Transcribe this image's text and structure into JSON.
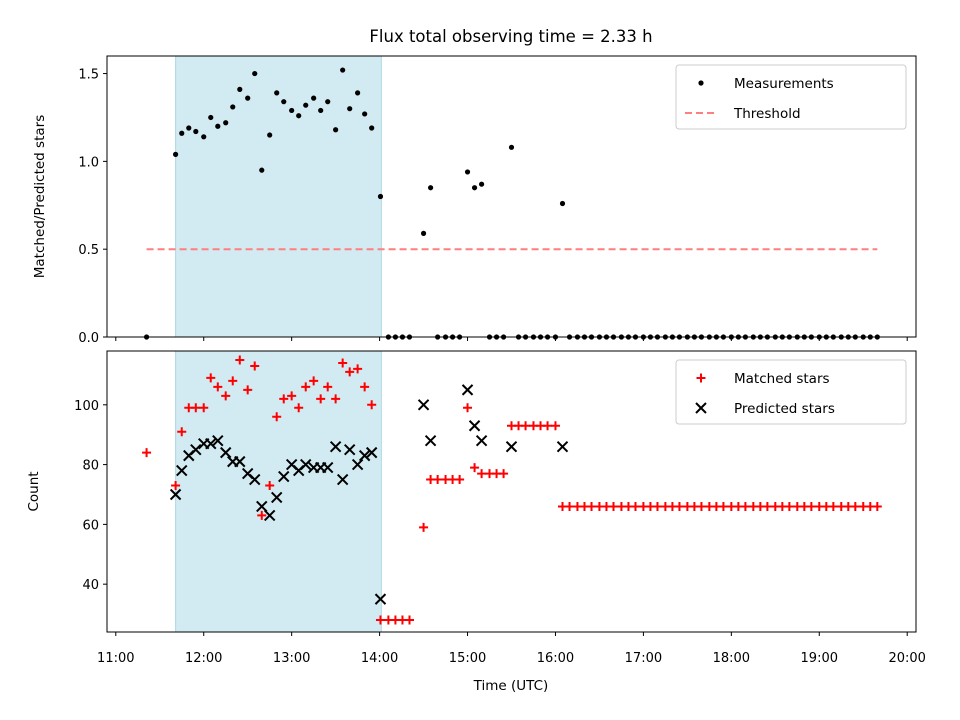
{
  "chart_data": {
    "type": "scatter",
    "title": "Flux total observing time = 2.33 h",
    "xlabel": "Time (UTC)",
    "x_unit": "hours UTC",
    "xlim": [
      10.9,
      20.1
    ],
    "x_ticks": [
      {
        "value": 11,
        "label": "11:00"
      },
      {
        "value": 12,
        "label": "12:00"
      },
      {
        "value": 13,
        "label": "13:00"
      },
      {
        "value": 14,
        "label": "14:00"
      },
      {
        "value": 15,
        "label": "15:00"
      },
      {
        "value": 16,
        "label": "16:00"
      },
      {
        "value": 17,
        "label": "17:00"
      },
      {
        "value": 18,
        "label": "18:00"
      },
      {
        "value": 19,
        "label": "19:00"
      },
      {
        "value": 20,
        "label": "20:00"
      }
    ],
    "highlight_span": {
      "x_start": 11.68,
      "x_end": 14.02,
      "color": "#add8e6"
    },
    "panels": [
      {
        "ylabel": "Matched/Predicted stars",
        "ylim": [
          0,
          1.6
        ],
        "yticks": [
          0.0,
          0.5,
          1.0,
          1.5
        ],
        "ytick_labels": [
          "0.0",
          "0.5",
          "1.0",
          "1.5"
        ],
        "legend": {
          "position": "top-right",
          "entries": [
            "Measurements",
            "Threshold"
          ]
        },
        "series": [
          {
            "name": "Measurements",
            "marker": "dot",
            "color": "#000000",
            "x": [
              11.35,
              11.68,
              11.75,
              11.83,
              11.91,
              12.0,
              12.08,
              12.16,
              12.25,
              12.33,
              12.41,
              12.5,
              12.58,
              12.66,
              12.75,
              12.83,
              12.91,
              13.0,
              13.08,
              13.16,
              13.25,
              13.33,
              13.41,
              13.5,
              13.58,
              13.66,
              13.75,
              13.83,
              13.91,
              14.01,
              14.1,
              14.18,
              14.26,
              14.34,
              14.5,
              14.58,
              14.66,
              14.75,
              14.83,
              14.91,
              15.0,
              15.08,
              15.16,
              15.25,
              15.33,
              15.41,
              15.5,
              15.58,
              15.66,
              15.75,
              15.83,
              15.91,
              16.0,
              16.08,
              16.16,
              16.25,
              16.33,
              16.41,
              16.5,
              16.58,
              16.66,
              16.75,
              16.83,
              16.91,
              17.0,
              17.08,
              17.16,
              17.25,
              17.33,
              17.41,
              17.5,
              17.58,
              17.66,
              17.75,
              17.83,
              17.91,
              18.0,
              18.08,
              18.16,
              18.25,
              18.33,
              18.41,
              18.5,
              18.58,
              18.66,
              18.75,
              18.83,
              18.91,
              19.0,
              19.08,
              19.16,
              19.25,
              19.33,
              19.41,
              19.5,
              19.58,
              19.66
            ],
            "y": [
              0.0,
              1.04,
              1.16,
              1.19,
              1.17,
              1.14,
              1.25,
              1.2,
              1.22,
              1.31,
              1.41,
              1.36,
              1.5,
              0.95,
              1.15,
              1.39,
              1.34,
              1.29,
              1.26,
              1.32,
              1.36,
              1.29,
              1.34,
              1.18,
              1.52,
              1.3,
              1.39,
              1.27,
              1.19,
              0.8,
              0.0,
              0.0,
              0.0,
              0.0,
              0.59,
              0.85,
              0.0,
              0.0,
              0.0,
              0.0,
              0.94,
              0.85,
              0.87,
              0.0,
              0.0,
              0.0,
              1.08,
              0.0,
              0.0,
              0.0,
              0.0,
              0.0,
              0.0,
              0.76,
              0.0,
              0.0,
              0.0,
              0.0,
              0.0,
              0.0,
              0.0,
              0.0,
              0.0,
              0.0,
              0.0,
              0.0,
              0.0,
              0.0,
              0.0,
              0.0,
              0.0,
              0.0,
              0.0,
              0.0,
              0.0,
              0.0,
              0.0,
              0.0,
              0.0,
              0.0,
              0.0,
              0.0,
              0.0,
              0.0,
              0.0,
              0.0,
              0.0,
              0.0,
              0.0,
              0.0,
              0.0,
              0.0,
              0.0,
              0.0,
              0.0,
              0.0,
              0.0
            ]
          },
          {
            "name": "Threshold",
            "marker": "dashed-line",
            "color": "#ff7f7f",
            "x": [
              11.35,
              19.66
            ],
            "y": [
              0.5,
              0.5
            ]
          }
        ]
      },
      {
        "ylabel": "Count",
        "ylim": [
          24,
          118
        ],
        "yticks": [
          40,
          60,
          80,
          100
        ],
        "ytick_labels": [
          "40",
          "60",
          "80",
          "100"
        ],
        "legend": {
          "position": "top-right",
          "entries": [
            "Matched stars",
            "Predicted stars"
          ]
        },
        "series": [
          {
            "name": "Matched stars",
            "marker": "plus",
            "color": "#ff0000",
            "x": [
              11.35,
              11.68,
              11.75,
              11.83,
              11.91,
              12.0,
              12.08,
              12.16,
              12.25,
              12.33,
              12.41,
              12.5,
              12.58,
              12.66,
              12.75,
              12.83,
              12.91,
              13.0,
              13.08,
              13.16,
              13.25,
              13.33,
              13.41,
              13.5,
              13.58,
              13.66,
              13.75,
              13.83,
              13.91,
              14.01,
              14.1,
              14.18,
              14.26,
              14.34,
              14.5,
              14.58,
              14.66,
              14.75,
              14.83,
              14.91,
              15.0,
              15.08,
              15.16,
              15.25,
              15.33,
              15.41,
              15.5,
              15.58,
              15.66,
              15.75,
              15.83,
              15.91,
              16.0,
              16.08,
              16.16,
              16.25,
              16.33,
              16.41,
              16.5,
              16.58,
              16.66,
              16.75,
              16.83,
              16.91,
              17.0,
              17.08,
              17.16,
              17.25,
              17.33,
              17.41,
              17.5,
              17.58,
              17.66,
              17.75,
              17.83,
              17.91,
              18.0,
              18.08,
              18.16,
              18.25,
              18.33,
              18.41,
              18.5,
              18.58,
              18.66,
              18.75,
              18.83,
              18.91,
              19.0,
              19.08,
              19.16,
              19.25,
              19.33,
              19.41,
              19.5,
              19.58,
              19.66
            ],
            "y": [
              84,
              73,
              91,
              99,
              99,
              99,
              109,
              106,
              103,
              108,
              115,
              105,
              113,
              63,
              73,
              96,
              102,
              103,
              99,
              106,
              108,
              102,
              106,
              102,
              114,
              111,
              112,
              106,
              100,
              28,
              28,
              28,
              28,
              28,
              59,
              75,
              75,
              75,
              75,
              75,
              99,
              79,
              77,
              77,
              77,
              77,
              93,
              93,
              93,
              93,
              93,
              93,
              93,
              66,
              66,
              66,
              66,
              66,
              66,
              66,
              66,
              66,
              66,
              66,
              66,
              66,
              66,
              66,
              66,
              66,
              66,
              66,
              66,
              66,
              66,
              66,
              66,
              66,
              66,
              66,
              66,
              66,
              66,
              66,
              66,
              66,
              66,
              66,
              66,
              66,
              66,
              66,
              66,
              66,
              66,
              66,
              66
            ]
          },
          {
            "name": "Predicted stars",
            "marker": "x",
            "color": "#000000",
            "x": [
              11.68,
              11.75,
              11.83,
              11.91,
              12.0,
              12.08,
              12.16,
              12.25,
              12.33,
              12.41,
              12.5,
              12.58,
              12.66,
              12.75,
              12.83,
              12.91,
              13.0,
              13.08,
              13.16,
              13.25,
              13.33,
              13.41,
              13.5,
              13.58,
              13.66,
              13.75,
              13.83,
              13.91,
              14.01,
              14.5,
              14.58,
              15.0,
              15.08,
              15.16,
              15.5,
              16.08
            ],
            "y": [
              70,
              78,
              83,
              85,
              87,
              87,
              88,
              84,
              81,
              81,
              77,
              75,
              66,
              63,
              69,
              76,
              80,
              78,
              80,
              79,
              79,
              79,
              86,
              75,
              85,
              80,
              83,
              84,
              35,
              100,
              88,
              105,
              93,
              88,
              86,
              86
            ]
          }
        ]
      }
    ]
  }
}
